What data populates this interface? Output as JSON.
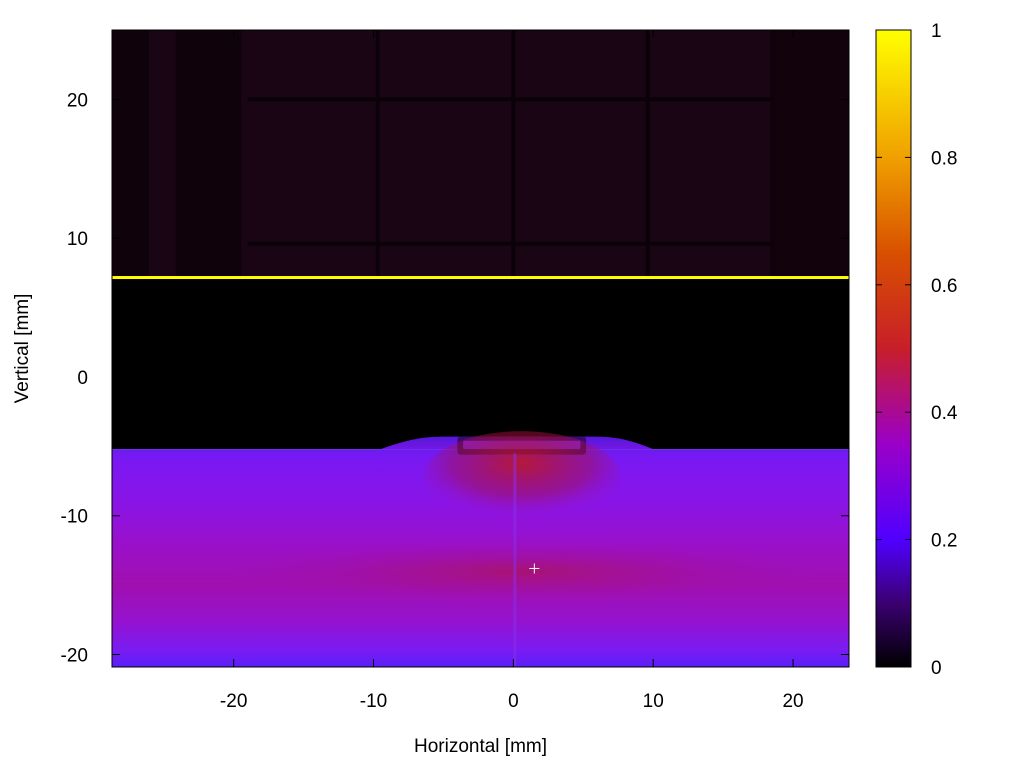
{
  "chart_data": {
    "type": "heatmap",
    "title": "",
    "xlabel": "Horizontal [mm]",
    "ylabel": "Vertical [mm]",
    "xlim": [
      -28.7,
      24.0
    ],
    "ylim": [
      -20.9,
      25.0
    ],
    "x_ticks": [
      -20,
      -10,
      0,
      10,
      20
    ],
    "y_ticks": [
      -20,
      -10,
      0,
      10,
      20
    ],
    "x_tick_labels": [
      "-20",
      "-10",
      "0",
      "10",
      "20"
    ],
    "y_tick_labels": [
      "-20",
      "-10",
      "0",
      "10",
      "20"
    ],
    "colorbar": {
      "range": [
        0,
        1
      ],
      "ticks": [
        0,
        0.2,
        0.4,
        0.6,
        0.8,
        1
      ],
      "tick_labels": [
        "0",
        "0.2",
        "0.4",
        "0.6",
        "0.8",
        "1"
      ],
      "colormap": "black-purple-red-orange-yellow",
      "stops": [
        {
          "value": 0.0,
          "color": "#000000"
        },
        {
          "value": 0.1,
          "color": "#3a0070"
        },
        {
          "value": 0.2,
          "color": "#5000ff"
        },
        {
          "value": 0.35,
          "color": "#9a00c8"
        },
        {
          "value": 0.5,
          "color": "#c81e2a"
        },
        {
          "value": 0.65,
          "color": "#d85000"
        },
        {
          "value": 0.8,
          "color": "#f0a000"
        },
        {
          "value": 1.0,
          "color": "#ffff00"
        }
      ]
    },
    "regions": [
      {
        "name": "upper-background",
        "y_range": [
          7.2,
          25.0
        ],
        "x_range": [
          -28.7,
          24.0
        ],
        "value": 0.07,
        "color": "#1a0514"
      },
      {
        "name": "bright-edge-line",
        "y": 7.2,
        "x_range": [
          -28.7,
          24.0
        ],
        "value": 1.0,
        "color": "#ffff00"
      },
      {
        "name": "dark-gap",
        "y_range": [
          -5.2,
          7.2
        ],
        "x_range": [
          -28.7,
          24.0
        ],
        "value": 0.0,
        "color": "#000000"
      },
      {
        "name": "beam-band",
        "y_range": [
          -20.9,
          -5.2
        ],
        "x_range": [
          -28.7,
          24.0
        ],
        "value_min": 0.2,
        "value_max": 0.48,
        "peak_y": -14.0
      }
    ],
    "grid": false,
    "marker": {
      "symbol": "+",
      "x": 1.5,
      "y": -13.8,
      "color": "#ffffff"
    },
    "colors": {
      "plot_border": "#000000",
      "background": "#ffffff",
      "marker": "#ffffff"
    }
  }
}
